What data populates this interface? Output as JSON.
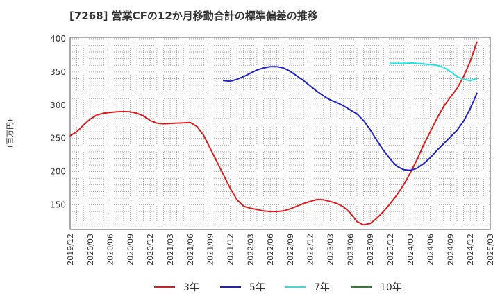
{
  "chart_data": {
    "type": "line",
    "title": "[7268]  営業CFの12か月移動合計の標準偏差の推移",
    "ylabel": "(百万円)",
    "ylim": [
      113,
      402
    ],
    "yticks": [
      150,
      200,
      250,
      300,
      350,
      400
    ],
    "x_ticks": [
      "2019/12",
      "2020/03",
      "2020/06",
      "2020/09",
      "2020/12",
      "2021/03",
      "2021/06",
      "2021/09",
      "2021/12",
      "2022/03",
      "2022/06",
      "2022/09",
      "2022/12",
      "2023/03",
      "2023/06",
      "2023/09",
      "2023/12",
      "2024/03",
      "2024/06",
      "2024/09",
      "2024/12",
      "2025/03"
    ],
    "grid": true,
    "legend_position": "bottom",
    "series": [
      {
        "name": "3年",
        "color": "#e31a1c",
        "points": [
          [
            "2019/12",
            254
          ],
          [
            "2020/01",
            260
          ],
          [
            "2020/02",
            270
          ],
          [
            "2020/03",
            279
          ],
          [
            "2020/04",
            285
          ],
          [
            "2020/05",
            288
          ],
          [
            "2020/06",
            289
          ],
          [
            "2020/07",
            290
          ],
          [
            "2020/08",
            290.5
          ],
          [
            "2020/09",
            290
          ],
          [
            "2020/10",
            288
          ],
          [
            "2020/11",
            284
          ],
          [
            "2020/12",
            277
          ],
          [
            "2021/01",
            273
          ],
          [
            "2021/02",
            272
          ],
          [
            "2021/03",
            272.5
          ],
          [
            "2021/04",
            273
          ],
          [
            "2021/05",
            273.5
          ],
          [
            "2021/06",
            274
          ],
          [
            "2021/07",
            268
          ],
          [
            "2021/08",
            255
          ],
          [
            "2021/09",
            235
          ],
          [
            "2021/10",
            215
          ],
          [
            "2021/11",
            195
          ],
          [
            "2021/12",
            175
          ],
          [
            "2022/01",
            158
          ],
          [
            "2022/02",
            148
          ],
          [
            "2022/03",
            145
          ],
          [
            "2022/04",
            143
          ],
          [
            "2022/05",
            141
          ],
          [
            "2022/06",
            140
          ],
          [
            "2022/07",
            140
          ],
          [
            "2022/08",
            141
          ],
          [
            "2022/09",
            144
          ],
          [
            "2022/10",
            148
          ],
          [
            "2022/11",
            152
          ],
          [
            "2022/12",
            155
          ],
          [
            "2023/01",
            158
          ],
          [
            "2023/02",
            157.5
          ],
          [
            "2023/03",
            155
          ],
          [
            "2023/04",
            152
          ],
          [
            "2023/05",
            147
          ],
          [
            "2023/06",
            138
          ],
          [
            "2023/07",
            125
          ],
          [
            "2023/08",
            120
          ],
          [
            "2023/09",
            122
          ],
          [
            "2023/10",
            130
          ],
          [
            "2023/11",
            140
          ],
          [
            "2023/12",
            152
          ],
          [
            "2024/01",
            165
          ],
          [
            "2024/02",
            180
          ],
          [
            "2024/03",
            198
          ],
          [
            "2024/04",
            218
          ],
          [
            "2024/05",
            240
          ],
          [
            "2024/06",
            260
          ],
          [
            "2024/07",
            280
          ],
          [
            "2024/08",
            298
          ],
          [
            "2024/09",
            312
          ],
          [
            "2024/10",
            325
          ],
          [
            "2024/11",
            343
          ],
          [
            "2024/12",
            366
          ],
          [
            "2025/01",
            395
          ]
        ]
      },
      {
        "name": "5年",
        "color": "#1f1fcf",
        "points": [
          [
            "2021/11",
            337
          ],
          [
            "2021/12",
            336
          ],
          [
            "2022/01",
            339
          ],
          [
            "2022/02",
            343
          ],
          [
            "2022/03",
            348
          ],
          [
            "2022/04",
            353
          ],
          [
            "2022/05",
            356
          ],
          [
            "2022/06",
            358
          ],
          [
            "2022/07",
            358
          ],
          [
            "2022/08",
            356
          ],
          [
            "2022/09",
            351
          ],
          [
            "2022/10",
            344
          ],
          [
            "2022/11",
            337
          ],
          [
            "2022/12",
            329
          ],
          [
            "2023/01",
            321
          ],
          [
            "2023/02",
            314
          ],
          [
            "2023/03",
            308
          ],
          [
            "2023/04",
            304
          ],
          [
            "2023/05",
            299
          ],
          [
            "2023/06",
            293
          ],
          [
            "2023/07",
            287
          ],
          [
            "2023/08",
            277
          ],
          [
            "2023/09",
            263
          ],
          [
            "2023/10",
            247
          ],
          [
            "2023/11",
            232
          ],
          [
            "2023/12",
            219
          ],
          [
            "2024/01",
            208
          ],
          [
            "2024/02",
            203
          ],
          [
            "2024/03",
            202
          ],
          [
            "2024/04",
            205
          ],
          [
            "2024/05",
            212
          ],
          [
            "2024/06",
            221
          ],
          [
            "2024/07",
            232
          ],
          [
            "2024/08",
            242
          ],
          [
            "2024/09",
            252
          ],
          [
            "2024/10",
            262
          ],
          [
            "2024/11",
            276
          ],
          [
            "2024/12",
            295
          ],
          [
            "2025/01",
            318
          ]
        ]
      },
      {
        "name": "7年",
        "color": "#22e6e6",
        "points": [
          [
            "2023/12",
            363
          ],
          [
            "2024/01",
            363
          ],
          [
            "2024/02",
            363
          ],
          [
            "2024/03",
            363.5
          ],
          [
            "2024/04",
            363
          ],
          [
            "2024/05",
            362
          ],
          [
            "2024/06",
            361
          ],
          [
            "2024/07",
            360
          ],
          [
            "2024/08",
            357
          ],
          [
            "2024/09",
            351
          ],
          [
            "2024/10",
            343
          ],
          [
            "2024/11",
            339
          ],
          [
            "2024/12",
            337
          ],
          [
            "2025/01",
            340
          ]
        ]
      },
      {
        "name": "10年",
        "color": "#1a8a1a",
        "points": []
      }
    ]
  }
}
